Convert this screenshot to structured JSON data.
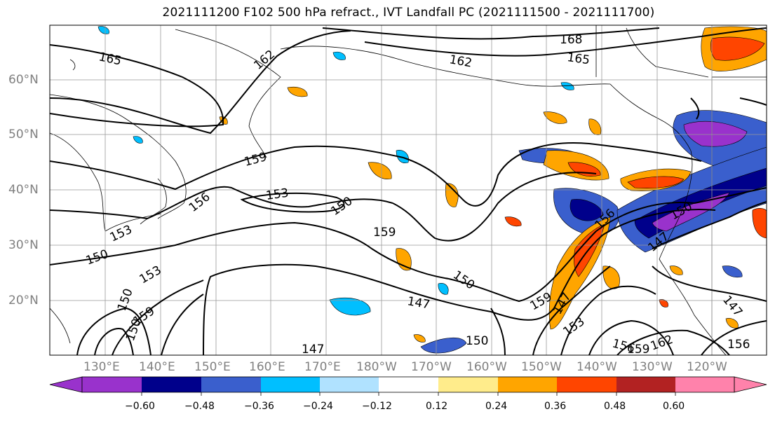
{
  "title": "2021111200 F102 500 hPa refract., IVT Landfall PC (2021111500 - 2021111700)",
  "lat_labels": [
    "60°N",
    "50°N",
    "40°N",
    "30°N",
    "20°N"
  ],
  "lon_labels": [
    "130°E",
    "140°E",
    "150°E",
    "160°E",
    "170°E",
    "180°W",
    "170°W",
    "160°W",
    "150°W",
    "140°W",
    "130°W",
    "120°W"
  ],
  "contour_labels": [
    "168",
    "165",
    "165",
    "162",
    "162",
    "159",
    "153",
    "156",
    "153",
    "150",
    "150",
    "153",
    "159",
    "150",
    "147",
    "150",
    "159",
    "147",
    "153",
    "156",
    "150",
    "147",
    "156",
    "159",
    "162",
    "150",
    "156",
    "147",
    "159",
    "150",
    "147"
  ],
  "colorbar": {
    "ticks": [
      "−0.60",
      "−0.48",
      "−0.36",
      "−0.24",
      "−0.12",
      "0.12",
      "0.24",
      "0.36",
      "0.48",
      "0.60"
    ],
    "colors": [
      "#9932cc",
      "#00008b",
      "#3a5fcd",
      "#00bfff",
      "#b0e2ff",
      "#ffffff",
      "#ffec8b",
      "#ffa500",
      "#ff4500",
      "#b22222",
      "#ff82ab"
    ]
  }
}
